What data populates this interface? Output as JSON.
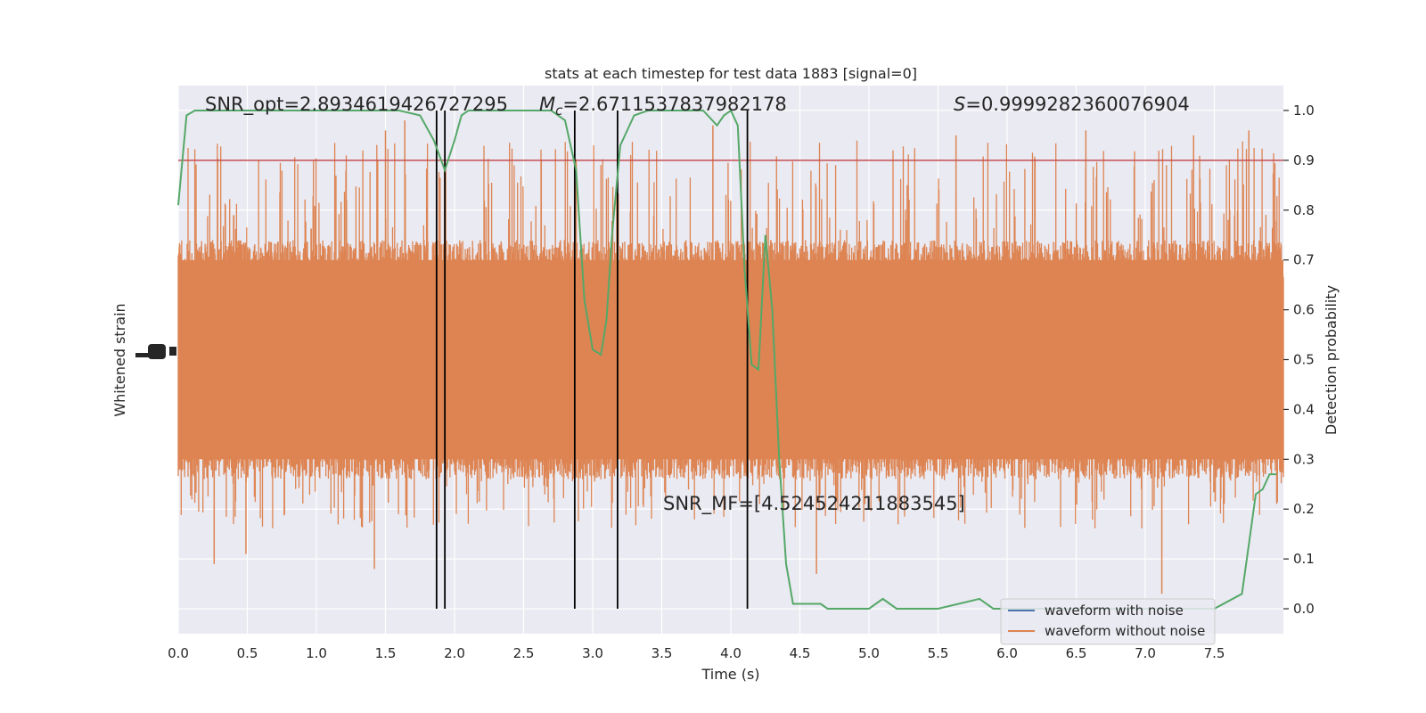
{
  "chart_data": {
    "type": "line",
    "title": "stats at each timestep for test data 1883 [signal=0]",
    "xlabel": "Time (s)",
    "ylabel_left": "Whitened strain",
    "ylabel_right": "Detection probability",
    "xlim": [
      0.0,
      8.0
    ],
    "ylim_right": [
      -0.05,
      1.05
    ],
    "xticks": [
      0.0,
      0.5,
      1.0,
      1.5,
      2.0,
      2.5,
      3.0,
      3.5,
      4.0,
      4.5,
      5.0,
      5.5,
      6.0,
      6.5,
      7.0,
      7.5
    ],
    "xtick_labels": [
      "0.0",
      "0.5",
      "1.0",
      "1.5",
      "2.0",
      "2.5",
      "3.0",
      "3.5",
      "4.0",
      "4.5",
      "5.0",
      "5.5",
      "6.0",
      "6.5",
      "7.0",
      "7.5"
    ],
    "yticks_right": [
      0.0,
      0.1,
      0.2,
      0.3,
      0.4,
      0.5,
      0.6,
      0.7,
      0.8,
      0.9,
      1.0
    ],
    "ytick_labels_right": [
      "0.0",
      "0.1",
      "0.2",
      "0.3",
      "0.4",
      "0.5",
      "0.6",
      "0.7",
      "0.8",
      "0.9",
      "1.0"
    ],
    "grid": true,
    "legend_position": "lower-right",
    "annotations": {
      "snr_opt": "SNR_opt=2.8934619426727295",
      "mc_symbol": "M",
      "mc_subscript": "c",
      "mc_value": "=2.6711537837982178",
      "s_symbol": "S",
      "s_value": "=0.9999282360076904",
      "snr_mf": "SNR_MF=[4.524524211883545]"
    },
    "series": [
      {
        "name": "waveform with noise",
        "color": "#4c72b0",
        "values": []
      },
      {
        "name": "waveform without noise",
        "color": "#dd8452",
        "note_values": "dense whitened strain noise, band approximately 0.30-0.70 in right-axis units, spikes to ~0.98 and ~0.08"
      },
      {
        "name": "detection probability",
        "color": "#55a868",
        "x": [
          0.0,
          0.06,
          0.12,
          0.5,
          1.0,
          1.5,
          1.6,
          1.75,
          1.85,
          1.93,
          2.0,
          2.05,
          2.1,
          2.5,
          2.7,
          2.8,
          2.88,
          2.94,
          3.0,
          3.06,
          3.1,
          3.14,
          3.2,
          3.3,
          3.4,
          3.6,
          3.8,
          3.9,
          3.95,
          4.0,
          4.05,
          4.1,
          4.15,
          4.2,
          4.25,
          4.3,
          4.35,
          4.4,
          4.45,
          4.55,
          4.65,
          4.7,
          4.8,
          5.0,
          5.1,
          5.2,
          5.5,
          5.8,
          5.9,
          6.0,
          6.5,
          7.0,
          7.5,
          7.7,
          7.75,
          7.8,
          7.85,
          7.9,
          7.95
        ],
        "values": [
          0.81,
          0.99,
          1.0,
          1.0,
          1.0,
          1.0,
          1.0,
          0.99,
          0.94,
          0.88,
          0.94,
          0.99,
          1.0,
          1.0,
          1.0,
          0.98,
          0.88,
          0.62,
          0.52,
          0.51,
          0.58,
          0.75,
          0.93,
          0.99,
          1.0,
          1.0,
          1.0,
          0.97,
          0.99,
          1.0,
          0.97,
          0.68,
          0.49,
          0.48,
          0.75,
          0.6,
          0.3,
          0.09,
          0.01,
          0.01,
          0.01,
          0.0,
          0.0,
          0.0,
          0.02,
          0.0,
          0.0,
          0.02,
          0.0,
          0.0,
          0.0,
          0.0,
          0.0,
          0.03,
          0.13,
          0.23,
          0.24,
          0.27,
          0.27
        ]
      },
      {
        "name": "threshold",
        "color": "#c44e52",
        "values": [
          0.9
        ]
      }
    ],
    "vertical_lines_x": [
      1.87,
      1.93,
      2.87,
      3.18,
      4.12
    ],
    "vertical_lines_color": "#000000"
  }
}
